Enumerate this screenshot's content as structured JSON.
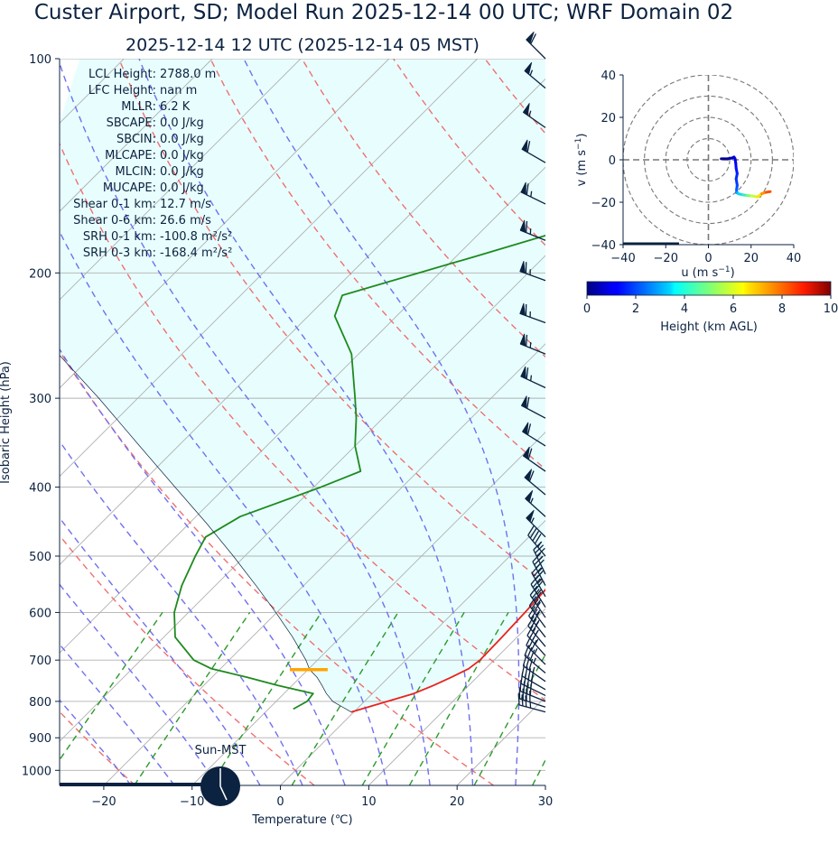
{
  "header": {
    "title": "Custer Airport, SD; Model Run 2025-12-14 00 UTC; WRF Domain 02",
    "subtitle": "2025-12-14 12 UTC  (2025-12-14 05 MST)"
  },
  "colors": {
    "text": "#0b2240",
    "temperature": "#e8231e",
    "dewpoint": "#1e8a1e",
    "parcel": "#0b2240",
    "dry_adiabat": "#f07070",
    "moist_adiabat": "#7070f0",
    "mixing_ratio": "#2a9a2a",
    "isotherm": "#b0b0b0",
    "cape_fill": "#e8fefe",
    "lcl_marker": "#ffa500",
    "wind_barb": "#0b2240"
  },
  "stats": [
    {
      "label": "LCL Height:",
      "value": "2788.0 m"
    },
    {
      "label": "LFC Height:",
      "value": "nan m"
    },
    {
      "label": "MLLR:",
      "value": "6.2 K"
    },
    {
      "label": "SBCAPE:",
      "value": "0.0 J/kg"
    },
    {
      "label": "SBCIN:",
      "value": "0.0 J/kg"
    },
    {
      "label": "MLCAPE:",
      "value": "0.0 J/kg"
    },
    {
      "label": "MLCIN:",
      "value": "0.0 J/kg"
    },
    {
      "label": "MUCAPE:",
      "value": "0.0 J/kg"
    },
    {
      "label": "Shear 0-1 km:",
      "value": "12.7 m/s"
    },
    {
      "label": "Shear 0-6 km:",
      "value": "26.6 m/s"
    },
    {
      "label": "SRH 0-1 km:",
      "value": "-100.8 m²/s²"
    },
    {
      "label": "SRH 0-3 km:",
      "value": "-168.4 m²/s²"
    }
  ],
  "sun_label": "Sun-MST",
  "chart_data": [
    {
      "type": "line",
      "chart": "skew-t",
      "xlabel": "Temperature (℃)",
      "ylabel": "Isobaric Height (hPa)",
      "xlim": [
        -25,
        30
      ],
      "ylim": [
        1050,
        100
      ],
      "x_ticks": [
        -20,
        -10,
        0,
        10,
        20,
        30
      ],
      "x_tick_labels": [
        "−20",
        "−10",
        "0",
        "10",
        "20",
        "30"
      ],
      "y_ticks": [
        100,
        200,
        300,
        400,
        500,
        600,
        700,
        800,
        900,
        1000
      ],
      "y_tick_labels": [
        "100",
        "200",
        "300",
        "400",
        "500",
        "600",
        "700",
        "800",
        "900",
        "1000"
      ],
      "skew_degrees": 45,
      "grid": true,
      "series": [
        {
          "key": "temperature",
          "pressure": [
            828,
            800,
            780,
            760,
            740,
            720,
            700,
            650,
            600,
            550,
            500,
            470,
            440,
            400,
            350,
            300,
            260,
            230,
            210,
            190,
            170,
            150,
            130,
            115,
            100
          ],
          "values": [
            -0.3,
            2.6,
            4.7,
            6.0,
            7.1,
            8.1,
            8.4,
            8.3,
            8.1,
            7.8,
            6.8,
            5.5,
            4.4,
            2.3,
            0.2,
            -2.6,
            -6.1,
            -8.8,
            -7.8,
            -2.8,
            1.4,
            4.6,
            10.8,
            16.6,
            24.1
          ]
        },
        {
          "key": "dewpoint",
          "pressure": [
            820,
            800,
            780,
            760,
            740,
            720,
            700,
            650,
            600,
            550,
            500,
            470,
            440,
            400,
            380,
            350,
            320,
            300,
            260,
            230,
            215,
            190,
            170,
            150,
            130,
            115,
            100
          ],
          "values": [
            -7.2,
            -6.5,
            -6.7,
            -11.6,
            -16.0,
            -21.0,
            -24.0,
            -28.7,
            -31.6,
            -33.8,
            -35.6,
            -36.6,
            -35.0,
            -29.2,
            -26.5,
            -30.0,
            -33.0,
            -35.4,
            -40.8,
            -47.0,
            -48.5,
            -38.0,
            -28.8,
            -24.2,
            -20.0,
            -18.2,
            -14.8
          ]
        },
        {
          "key": "parcel",
          "pressure": [
            828,
            800,
            780,
            760,
            740,
            722,
            700,
            650,
            600,
            550,
            500,
            450,
            400,
            350,
            300,
            260,
            230,
            213
          ],
          "values": [
            -0.3,
            -3.6,
            -5.2,
            -6.6,
            -8.1,
            -9.8,
            -11.3,
            -15.4,
            -20.1,
            -25.4,
            -31.3,
            -38.0,
            -45.7,
            -54.4,
            -64.4,
            -74.0,
            -82.0,
            -87.0
          ]
        }
      ],
      "lcl_pressure": 722,
      "lcl_temperature": -9.8,
      "dry_adiabats_theta_c": [
        -60,
        -40,
        -20,
        0,
        20,
        40,
        60,
        80,
        100,
        120,
        140,
        160,
        180,
        200
      ],
      "moist_adiabats_t_c": [
        -20,
        -15,
        -10,
        -5,
        0,
        5,
        10,
        15,
        20,
        25
      ],
      "mixing_ratios_g_per_kg": [
        0.4,
        1,
        2,
        4,
        7,
        10,
        16,
        24
      ],
      "wind_barbs": [
        {
          "p": 828,
          "speed_kt": 35,
          "dir": 285
        },
        {
          "p": 815,
          "speed_kt": 40,
          "dir": 288
        },
        {
          "p": 800,
          "speed_kt": 40,
          "dir": 292
        },
        {
          "p": 785,
          "speed_kt": 40,
          "dir": 296
        },
        {
          "p": 770,
          "speed_kt": 40,
          "dir": 300
        },
        {
          "p": 750,
          "speed_kt": 35,
          "dir": 305
        },
        {
          "p": 730,
          "speed_kt": 35,
          "dir": 310
        },
        {
          "p": 710,
          "speed_kt": 35,
          "dir": 315
        },
        {
          "p": 690,
          "speed_kt": 35,
          "dir": 318
        },
        {
          "p": 670,
          "speed_kt": 35,
          "dir": 320
        },
        {
          "p": 650,
          "speed_kt": 35,
          "dir": 322
        },
        {
          "p": 630,
          "speed_kt": 35,
          "dir": 324
        },
        {
          "p": 610,
          "speed_kt": 35,
          "dir": 326
        },
        {
          "p": 590,
          "speed_kt": 35,
          "dir": 328
        },
        {
          "p": 570,
          "speed_kt": 35,
          "dir": 330
        },
        {
          "p": 550,
          "speed_kt": 35,
          "dir": 332
        },
        {
          "p": 530,
          "speed_kt": 35,
          "dir": 334
        },
        {
          "p": 500,
          "speed_kt": 45,
          "dir": 320
        },
        {
          "p": 470,
          "speed_kt": 55,
          "dir": 315
        },
        {
          "p": 440,
          "speed_kt": 55,
          "dir": 312
        },
        {
          "p": 410,
          "speed_kt": 60,
          "dir": 310
        },
        {
          "p": 380,
          "speed_kt": 60,
          "dir": 305
        },
        {
          "p": 350,
          "speed_kt": 60,
          "dir": 302
        },
        {
          "p": 320,
          "speed_kt": 60,
          "dir": 298
        },
        {
          "p": 290,
          "speed_kt": 65,
          "dir": 295
        },
        {
          "p": 260,
          "speed_kt": 65,
          "dir": 292
        },
        {
          "p": 235,
          "speed_kt": 65,
          "dir": 290
        },
        {
          "p": 205,
          "speed_kt": 65,
          "dir": 290
        },
        {
          "p": 180,
          "speed_kt": 65,
          "dir": 292
        },
        {
          "p": 160,
          "speed_kt": 65,
          "dir": 296
        },
        {
          "p": 140,
          "speed_kt": 60,
          "dir": 300
        },
        {
          "p": 125,
          "speed_kt": 55,
          "dir": 305
        },
        {
          "p": 110,
          "speed_kt": 55,
          "dir": 310
        },
        {
          "p": 100,
          "speed_kt": 60,
          "dir": 315
        }
      ]
    },
    {
      "type": "scatter",
      "chart": "hodograph",
      "xlabel": "u (m s",
      "ylabel": "v (m s",
      "label_exponent": "−1",
      "xlim": [
        -40,
        40
      ],
      "ylim": [
        -40,
        40
      ],
      "x_tick_labels": [
        "−40",
        "−20",
        "0",
        "20",
        "40"
      ],
      "y_tick_labels": [
        "−40",
        "−20",
        "0",
        "20",
        "40"
      ],
      "ring_radii": [
        10,
        20,
        30,
        40
      ],
      "u": [
        6.0,
        9.0,
        11.0,
        12.0,
        12.5,
        12.8,
        13.0,
        13.5,
        13.0,
        13.5,
        13.2,
        13.2,
        13.5,
        14.0,
        16.0,
        18.0,
        20.0,
        23.0,
        25.0,
        27.0,
        29.0
      ],
      "v": [
        0.5,
        0.5,
        0.8,
        1.3,
        0.5,
        -1.5,
        -4.0,
        -6.5,
        -9.0,
        -12.0,
        -14.0,
        -15.5,
        -15.5,
        -16.0,
        -16.5,
        -16.8,
        -17.0,
        -17.5,
        -16.0,
        -15.3,
        -15.0
      ],
      "height_km": [
        0.0,
        0.2,
        0.4,
        0.6,
        0.8,
        1.0,
        1.2,
        1.4,
        1.6,
        1.8,
        2.0,
        2.3,
        2.7,
        3.2,
        3.8,
        4.5,
        5.3,
        6.2,
        7.2,
        8.0,
        8.6
      ],
      "colorbar": {
        "label": "Height (km AGL)",
        "range": [
          0,
          10
        ],
        "tick_labels": [
          "0",
          "2",
          "4",
          "6",
          "8",
          "10"
        ]
      }
    }
  ]
}
